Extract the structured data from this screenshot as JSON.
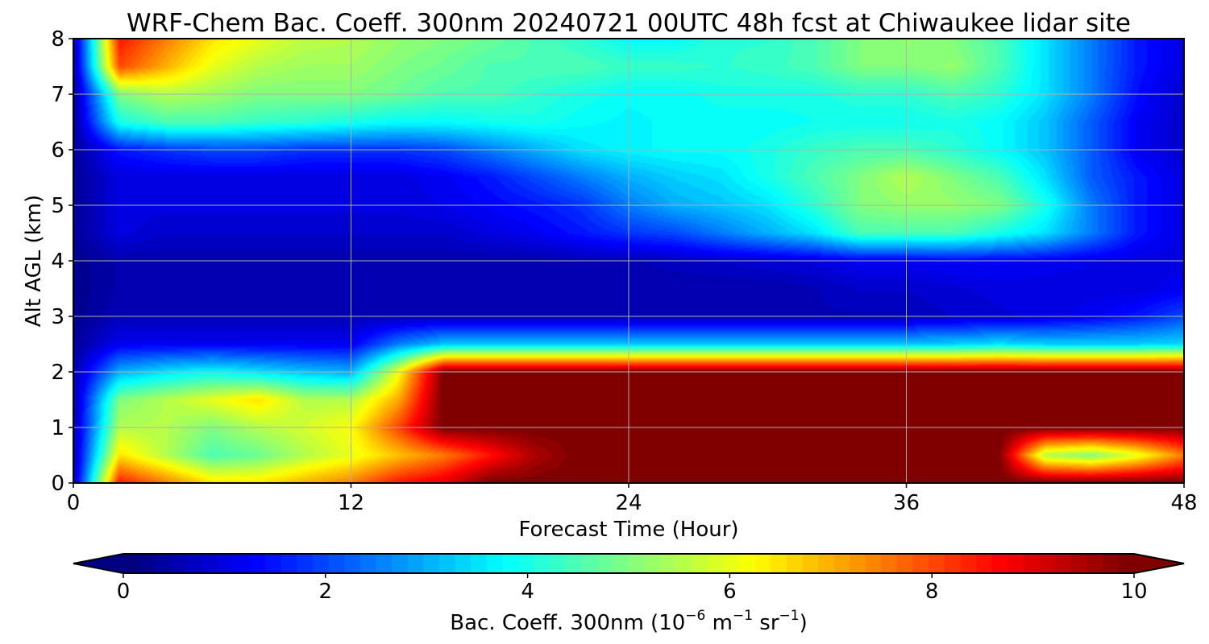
{
  "chart_data": {
    "type": "heatmap",
    "title": "WRF-Chem Bac. Coeff. 300nm  20240721 00UTC 48h fcst at Chiwaukee lidar site",
    "xlabel": "Forecast Time (Hour)",
    "ylabel": "Alt AGL (km)",
    "xlim": [
      0,
      48
    ],
    "ylim": [
      0,
      8
    ],
    "x_ticks": [
      0,
      12,
      24,
      36,
      48
    ],
    "y_ticks": [
      0,
      1,
      2,
      3,
      4,
      5,
      6,
      7,
      8
    ],
    "grid": true,
    "colormap": "jet",
    "colorbar": {
      "label_main": "Bac. Coeff. 300nm  (10",
      "label_exp1": "−6",
      "label_unit1": " m",
      "label_exp2": "−1",
      "label_unit2": " sr",
      "label_exp3": "−1",
      "label_close": ")",
      "vmin": 0,
      "vmax": 10,
      "ticks": [
        0,
        2,
        4,
        6,
        8,
        10
      ],
      "extend": "both",
      "orientation": "horizontal"
    },
    "hours": [
      0,
      2,
      4,
      6,
      8,
      10,
      12,
      14,
      16,
      18,
      20,
      22,
      24,
      26,
      28,
      30,
      32,
      34,
      36,
      38,
      40,
      42,
      44,
      46,
      48
    ],
    "altitudes_km": [
      0,
      0.5,
      1,
      1.5,
      2,
      2.5,
      3,
      3.5,
      4,
      4.5,
      5,
      5.5,
      6,
      6.5,
      7,
      7.5,
      8
    ],
    "values": [
      [
        0.5,
        8.5,
        7.5,
        6.5,
        6.5,
        7.0,
        7.5,
        8.5,
        9.0,
        10.0,
        10.0,
        10.0,
        10.0,
        10.0,
        10.0,
        10.0,
        10.0,
        10.0,
        10.0,
        10.0,
        10.0,
        10.0,
        10.0,
        10.0,
        10.0
      ],
      [
        0.5,
        6.5,
        5.5,
        4.5,
        4.8,
        5.5,
        6.0,
        6.8,
        7.5,
        8.5,
        9.5,
        10.0,
        10.0,
        10.0,
        10.0,
        10.0,
        10.0,
        10.0,
        10.0,
        10.0,
        10.0,
        5.5,
        5.0,
        6.0,
        7.5
      ],
      [
        0.5,
        5.5,
        5.5,
        5.0,
        5.5,
        5.8,
        6.2,
        8.0,
        10.0,
        10.0,
        10.0,
        10.0,
        10.0,
        10.0,
        10.0,
        10.0,
        10.0,
        10.0,
        10.0,
        10.0,
        10.0,
        10.0,
        10.0,
        10.0,
        10.0
      ],
      [
        0.5,
        5.0,
        5.5,
        6.0,
        6.5,
        5.5,
        5.5,
        7.0,
        10.0,
        10.0,
        10.0,
        10.0,
        10.0,
        10.0,
        10.0,
        10.0,
        10.0,
        10.0,
        10.0,
        10.0,
        10.0,
        10.0,
        10.0,
        10.0,
        10.0
      ],
      [
        0.5,
        3.0,
        3.5,
        3.8,
        3.5,
        3.2,
        3.0,
        6.0,
        10.0,
        10.0,
        10.0,
        10.0,
        10.0,
        10.0,
        10.0,
        10.0,
        10.0,
        10.0,
        10.0,
        10.0,
        10.0,
        10.0,
        10.0,
        10.0,
        10.0
      ],
      [
        0.3,
        1.2,
        1.2,
        1.2,
        1.2,
        1.2,
        1.2,
        2.5,
        3.2,
        3.3,
        3.3,
        3.3,
        3.3,
        3.3,
        3.3,
        3.3,
        3.3,
        3.3,
        3.3,
        3.3,
        3.5,
        3.3,
        3.3,
        3.3,
        3.4
      ],
      [
        0.2,
        0.6,
        0.6,
        0.6,
        0.6,
        0.6,
        0.6,
        0.6,
        0.6,
        0.6,
        0.6,
        0.6,
        0.6,
        0.6,
        0.6,
        0.6,
        0.6,
        0.6,
        0.6,
        0.8,
        0.9,
        1.0,
        1.2,
        1.5,
        2.0
      ],
      [
        0.2,
        0.5,
        0.5,
        0.5,
        0.5,
        0.5,
        0.5,
        0.5,
        0.5,
        0.5,
        0.5,
        0.5,
        0.5,
        0.5,
        0.5,
        0.5,
        0.6,
        0.8,
        0.8,
        0.9,
        1.0,
        1.0,
        1.0,
        1.0,
        1.2
      ],
      [
        0.2,
        0.5,
        0.5,
        0.5,
        0.5,
        0.5,
        0.5,
        0.5,
        0.5,
        0.5,
        0.5,
        0.6,
        0.6,
        0.7,
        0.8,
        0.9,
        1.0,
        1.2,
        1.2,
        1.3,
        1.3,
        1.2,
        1.1,
        1.0,
        1.0
      ],
      [
        0.3,
        1.0,
        0.8,
        0.8,
        0.8,
        0.8,
        0.8,
        0.8,
        0.8,
        1.0,
        1.2,
        1.5,
        1.8,
        2.0,
        2.5,
        3.0,
        3.5,
        4.5,
        4.5,
        4.5,
        4.0,
        3.5,
        2.5,
        1.5,
        1.0
      ],
      [
        0.3,
        1.0,
        1.0,
        1.0,
        1.0,
        1.0,
        1.0,
        1.0,
        1.1,
        1.3,
        1.5,
        1.8,
        2.5,
        3.0,
        3.2,
        3.5,
        4.2,
        5.0,
        5.2,
        5.2,
        5.0,
        4.0,
        2.5,
        1.5,
        1.0
      ],
      [
        0.3,
        1.0,
        1.0,
        1.0,
        1.0,
        1.0,
        1.0,
        1.0,
        1.2,
        1.5,
        2.0,
        2.5,
        3.0,
        3.3,
        3.5,
        4.0,
        4.5,
        5.0,
        5.5,
        5.0,
        4.5,
        3.5,
        2.2,
        1.5,
        1.0
      ],
      [
        0.3,
        1.5,
        1.8,
        2.0,
        2.0,
        1.8,
        1.8,
        1.8,
        2.0,
        2.5,
        3.0,
        3.5,
        3.7,
        3.8,
        3.8,
        4.0,
        4.3,
        4.5,
        4.5,
        4.2,
        3.8,
        3.2,
        2.2,
        1.2,
        0.8
      ],
      [
        0.3,
        4.0,
        4.5,
        4.5,
        4.3,
        4.2,
        4.0,
        3.8,
        3.8,
        3.9,
        4.0,
        3.8,
        3.7,
        3.8,
        3.8,
        3.8,
        3.9,
        3.9,
        3.9,
        4.0,
        3.8,
        3.2,
        2.2,
        1.2,
        0.8
      ],
      [
        0.3,
        5.0,
        5.5,
        5.3,
        5.0,
        5.0,
        5.0,
        4.8,
        4.5,
        4.5,
        4.2,
        4.0,
        3.8,
        3.8,
        4.0,
        4.0,
        4.0,
        4.2,
        4.2,
        4.5,
        4.2,
        3.5,
        2.5,
        1.4,
        0.8
      ],
      [
        0.4,
        8.0,
        7.0,
        6.0,
        5.5,
        5.3,
        5.3,
        5.0,
        4.8,
        4.5,
        4.5,
        4.5,
        4.3,
        4.3,
        4.2,
        4.3,
        4.5,
        5.0,
        5.0,
        5.2,
        4.5,
        3.5,
        2.5,
        1.5,
        1.0
      ],
      [
        0.4,
        8.5,
        7.5,
        6.5,
        6.0,
        5.6,
        5.5,
        5.2,
        5.0,
        4.8,
        4.5,
        4.2,
        3.8,
        3.8,
        4.2,
        4.2,
        4.5,
        5.0,
        5.2,
        5.0,
        4.5,
        3.5,
        2.5,
        1.5,
        1.0
      ]
    ]
  }
}
